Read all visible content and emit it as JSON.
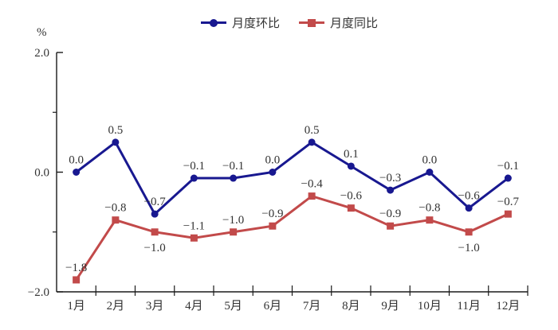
{
  "chart_data": {
    "type": "line",
    "title": "",
    "xlabel": "",
    "ylabel": "%",
    "grid": false,
    "legend_position": "top-center",
    "ylim": [
      -2.0,
      2.0
    ],
    "categories": [
      "1月",
      "2月",
      "3月",
      "4月",
      "5月",
      "6月",
      "7月",
      "8月",
      "9月",
      "10月",
      "11月",
      "12月"
    ],
    "yticks": [
      {
        "value": 2.0,
        "label": "2.0"
      },
      {
        "value": 0.0,
        "label": "0.0"
      },
      {
        "value": -2.0,
        "label": "−2.0"
      }
    ],
    "minor_yticks": [
      1.0,
      -1.0
    ],
    "series": [
      {
        "name": "月度环比",
        "color": "#181890",
        "marker": "circle",
        "values": [
          0.0,
          0.5,
          -0.7,
          -0.1,
          -0.1,
          0.0,
          0.5,
          0.1,
          -0.3,
          0.0,
          -0.6,
          -0.1
        ],
        "labels_below_indices": []
      },
      {
        "name": "月度同比",
        "color": "#c24a4a",
        "marker": "square",
        "values": [
          -1.8,
          -0.8,
          -1.0,
          -1.1,
          -1.0,
          -0.9,
          -0.4,
          -0.6,
          -0.9,
          -0.8,
          -1.0,
          -0.7
        ],
        "labels_below_indices": [
          2,
          10
        ]
      }
    ],
    "colors": {
      "axis": "#1a1a1a",
      "text": "#333333",
      "background": "#ffffff"
    }
  }
}
